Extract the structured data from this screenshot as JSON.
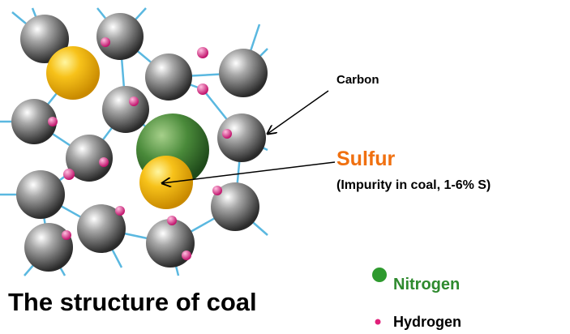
{
  "title": "The structure of coal",
  "labels": {
    "carbon": "Carbon",
    "sulfur": "Sulfur",
    "sulfur_note": "(Impurity in coal, 1-6% S)"
  },
  "legend": {
    "nitrogen": "Nitrogen",
    "hydrogen": "Hydrogen"
  }
}
